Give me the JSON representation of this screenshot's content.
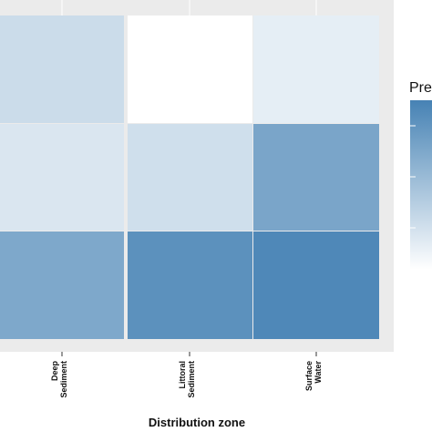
{
  "chart_data": {
    "type": "heatmap",
    "title": "",
    "xlabel": "Distribution zone",
    "ylabel": "",
    "x_categories": [
      "Deep Sediment",
      "Littoral Sediment",
      "Surface Water"
    ],
    "x_tick_lines": [
      [
        "Deep",
        "Sediment"
      ],
      [
        "Littoral",
        "Sediment"
      ],
      [
        "Surface",
        "Water"
      ]
    ],
    "rows": [
      {
        "values": [
          0.28,
          0.0,
          0.14
        ]
      },
      {
        "values": [
          0.2,
          0.26,
          0.72
        ]
      },
      {
        "values": [
          0.7,
          0.88,
          0.95
        ]
      }
    ],
    "value_range": [
      0,
      1
    ],
    "color_low": "#ffffff",
    "color_high": "#4682b4",
    "panel_background": "#ebebeb",
    "legend": {
      "title": "Pre",
      "placement": "right"
    },
    "grid": true
  }
}
